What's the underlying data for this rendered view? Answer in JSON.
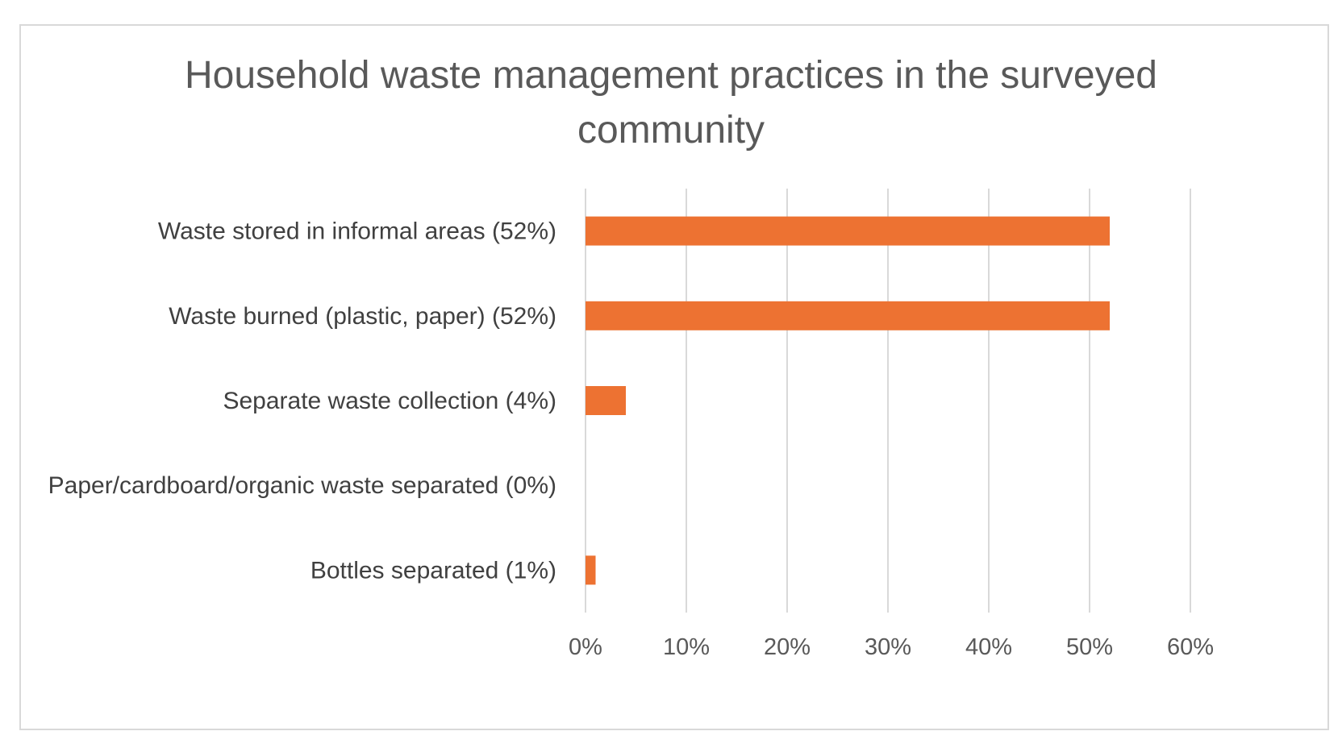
{
  "chart_data": {
    "type": "bar",
    "orientation": "horizontal",
    "title": [
      "Household waste management practices in the surveyed",
      "community"
    ],
    "categories": [
      "Waste stored in informal areas (52%)",
      "Waste burned (plastic, paper) (52%)",
      "Separate waste collection (4%)",
      "Paper/cardboard/organic waste separated (0%)",
      "Bottles separated (1%)"
    ],
    "values": [
      52,
      52,
      4,
      0,
      1
    ],
    "xlim": [
      0,
      60
    ],
    "xticks": [
      0,
      10,
      20,
      30,
      40,
      50,
      60
    ],
    "xtick_labels": [
      "0%",
      "10%",
      "20%",
      "30%",
      "40%",
      "50%",
      "60%"
    ],
    "bar_color": "#ed7232",
    "grid": "vertical",
    "legend": "none"
  }
}
